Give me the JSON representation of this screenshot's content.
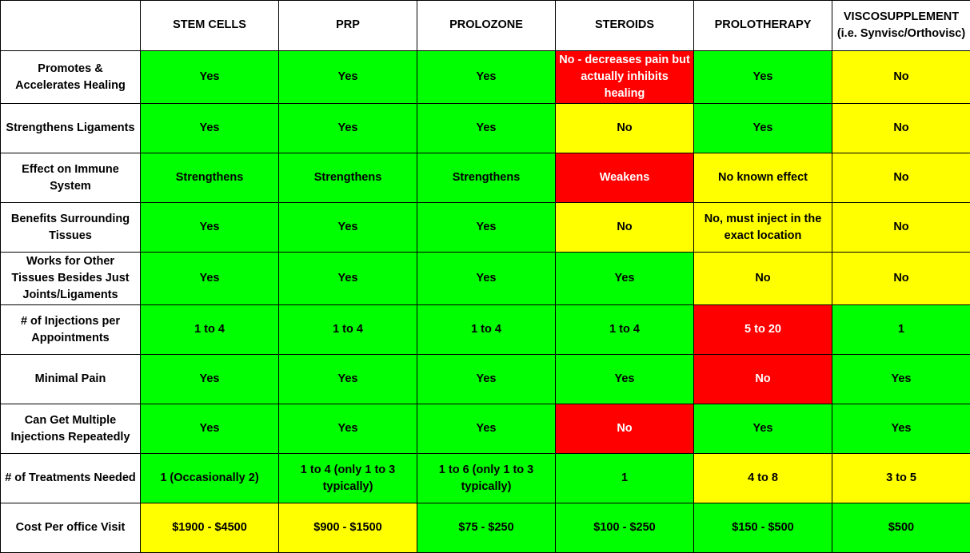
{
  "table": {
    "columns": [
      {
        "line1": "STEM CELLS",
        "line2": ""
      },
      {
        "line1": "PRP",
        "line2": ""
      },
      {
        "line1": "PROLOZONE",
        "line2": ""
      },
      {
        "line1": "STEROIDS",
        "line2": ""
      },
      {
        "line1": "PROLOTHERAPY",
        "line2": ""
      },
      {
        "line1": "VISCOSUPPLEMENT",
        "line2": "(i.e. Synvisc/Orthovisc)"
      }
    ],
    "rows": [
      {
        "label": "Promotes & Accelerates Healing",
        "cells": [
          {
            "text": "Yes",
            "color": "#00ff00"
          },
          {
            "text": "Yes",
            "color": "#00ff00"
          },
          {
            "text": "Yes",
            "color": "#00ff00"
          },
          {
            "text": "No - decreases pain but actually inhibits healing",
            "color": "#ff0000"
          },
          {
            "text": "Yes",
            "color": "#00ff00"
          },
          {
            "text": "No",
            "color": "#ffff00"
          }
        ]
      },
      {
        "label": "Strengthens Ligaments",
        "cells": [
          {
            "text": "Yes",
            "color": "#00ff00"
          },
          {
            "text": "Yes",
            "color": "#00ff00"
          },
          {
            "text": "Yes",
            "color": "#00ff00"
          },
          {
            "text": "No",
            "color": "#ffff00"
          },
          {
            "text": "Yes",
            "color": "#00ff00"
          },
          {
            "text": "No",
            "color": "#ffff00"
          }
        ]
      },
      {
        "label": "Effect on Immune System",
        "cells": [
          {
            "text": "Strengthens",
            "color": "#00ff00"
          },
          {
            "text": "Strengthens",
            "color": "#00ff00"
          },
          {
            "text": "Strengthens",
            "color": "#00ff00"
          },
          {
            "text": "Weakens",
            "color": "#ff0000"
          },
          {
            "text": "No known effect",
            "color": "#ffff00"
          },
          {
            "text": "No",
            "color": "#ffff00"
          }
        ]
      },
      {
        "label": "Benefits Surrounding Tissues",
        "cells": [
          {
            "text": "Yes",
            "color": "#00ff00"
          },
          {
            "text": "Yes",
            "color": "#00ff00"
          },
          {
            "text": "Yes",
            "color": "#00ff00"
          },
          {
            "text": "No",
            "color": "#ffff00"
          },
          {
            "text": "No, must inject in the exact location",
            "color": "#ffff00"
          },
          {
            "text": "No",
            "color": "#ffff00"
          }
        ]
      },
      {
        "label": "Works for Other Tissues Besides Just Joints/Ligaments",
        "cells": [
          {
            "text": "Yes",
            "color": "#00ff00"
          },
          {
            "text": "Yes",
            "color": "#00ff00"
          },
          {
            "text": "Yes",
            "color": "#00ff00"
          },
          {
            "text": "Yes",
            "color": "#00ff00"
          },
          {
            "text": "No",
            "color": "#ffff00"
          },
          {
            "text": "No",
            "color": "#ffff00"
          }
        ]
      },
      {
        "label": "# of Injections per Appointments",
        "cells": [
          {
            "text": "1 to 4",
            "color": "#00ff00"
          },
          {
            "text": "1 to 4",
            "color": "#00ff00"
          },
          {
            "text": "1 to 4",
            "color": "#00ff00"
          },
          {
            "text": "1 to 4",
            "color": "#00ff00"
          },
          {
            "text": "5 to 20",
            "color": "#ff0000"
          },
          {
            "text": "1",
            "color": "#00ff00"
          }
        ]
      },
      {
        "label": "Minimal Pain",
        "cells": [
          {
            "text": "Yes",
            "color": "#00ff00"
          },
          {
            "text": "Yes",
            "color": "#00ff00"
          },
          {
            "text": "Yes",
            "color": "#00ff00"
          },
          {
            "text": "Yes",
            "color": "#00ff00"
          },
          {
            "text": "No",
            "color": "#ff0000"
          },
          {
            "text": "Yes",
            "color": "#00ff00"
          }
        ]
      },
      {
        "label": "Can Get Multiple Injections Repeatedly",
        "cells": [
          {
            "text": "Yes",
            "color": "#00ff00"
          },
          {
            "text": "Yes",
            "color": "#00ff00"
          },
          {
            "text": "Yes",
            "color": "#00ff00"
          },
          {
            "text": "No",
            "color": "#ff0000"
          },
          {
            "text": "Yes",
            "color": "#00ff00"
          },
          {
            "text": "Yes",
            "color": "#00ff00"
          }
        ]
      },
      {
        "label": "# of Treatments Needed",
        "cells": [
          {
            "text": "1 (Occasionally 2)",
            "color": "#00ff00"
          },
          {
            "text": "1 to 4 (only 1 to 3 typically)",
            "color": "#00ff00"
          },
          {
            "text": "1 to 6 (only 1 to 3 typically)",
            "color": "#00ff00"
          },
          {
            "text": "1",
            "color": "#00ff00"
          },
          {
            "text": "4 to 8",
            "color": "#ffff00"
          },
          {
            "text": "3 to 5",
            "color": "#ffff00"
          }
        ]
      },
      {
        "label": "Cost Per office Visit",
        "cells": [
          {
            "text": "$1900 - $4500",
            "color": "#ffff00"
          },
          {
            "text": "$900 - $1500",
            "color": "#ffff00"
          },
          {
            "text": "$75 - $250",
            "color": "#00ff00"
          },
          {
            "text": "$100 - $250",
            "color": "#00ff00"
          },
          {
            "text": "$150 - $500",
            "color": "#00ff00"
          },
          {
            "text": "$500",
            "color": "#00ff00"
          }
        ]
      }
    ]
  }
}
